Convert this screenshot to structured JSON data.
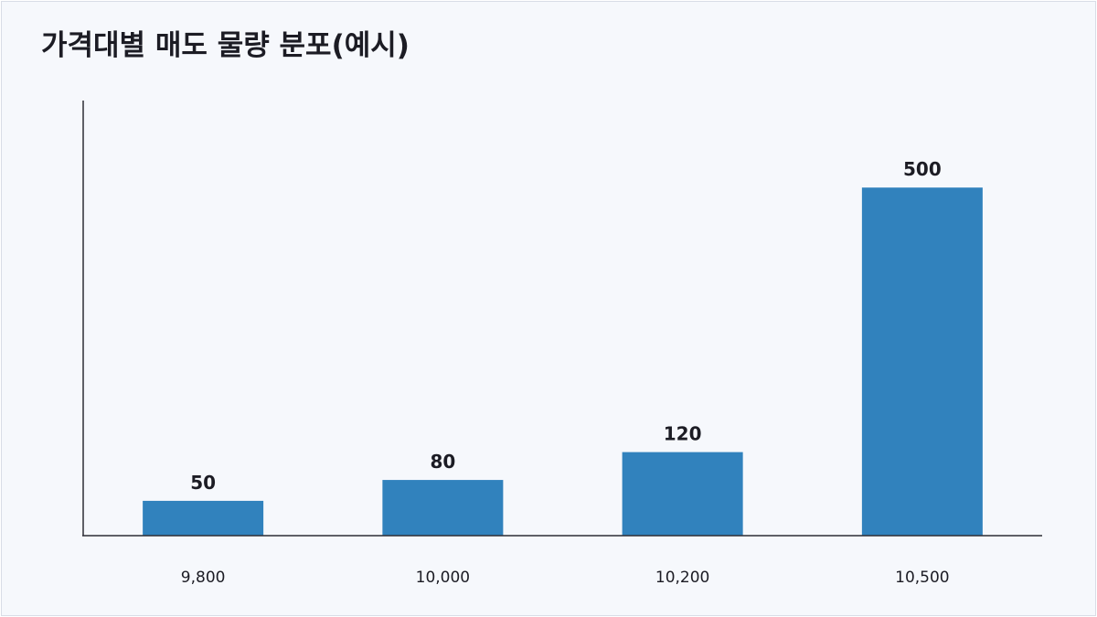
{
  "chart_data": {
    "type": "bar",
    "title": "가격대별 매도 물량 분포(예시)",
    "categories": [
      "9,800",
      "10,000",
      "10,200",
      "10,500"
    ],
    "values": [
      50,
      80,
      120,
      500
    ],
    "value_labels": [
      "50",
      "80",
      "120",
      "500"
    ],
    "xlabel": "",
    "ylabel": "",
    "ylim": [
      0,
      625
    ],
    "grid": false,
    "legend": "none",
    "bar_color": "#3182bd"
  }
}
